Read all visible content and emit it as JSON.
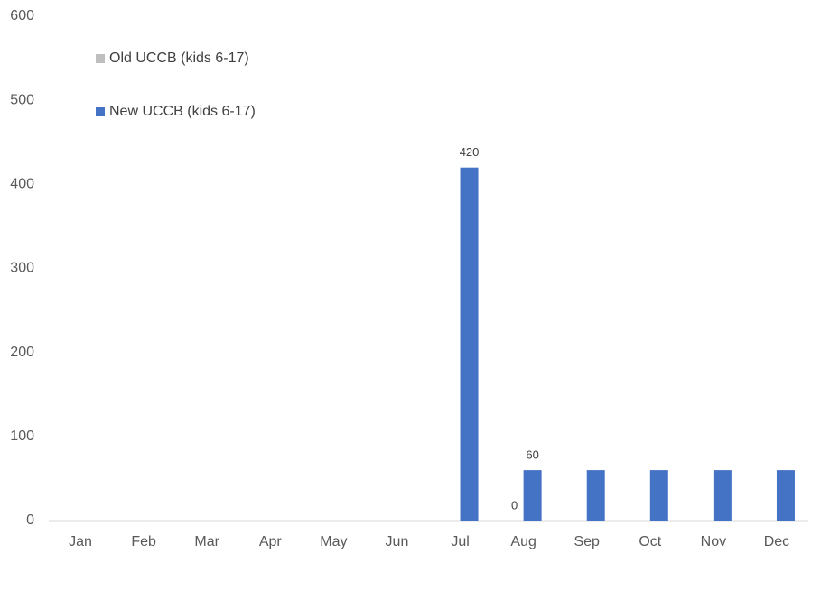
{
  "chart_data": {
    "type": "bar",
    "categories": [
      "Jan",
      "Feb",
      "Mar",
      "Apr",
      "May",
      "Jun",
      "Jul",
      "Aug",
      "Sep",
      "Oct",
      "Nov",
      "Dec"
    ],
    "series": [
      {
        "name": "Old UCCB (kids 6-17)",
        "color": "#bfbfbf",
        "values": [
          0,
          0,
          0,
          0,
          0,
          0,
          0,
          0,
          0,
          0,
          0,
          0
        ],
        "value_labels": [
          null,
          null,
          null,
          null,
          null,
          null,
          null,
          "0",
          null,
          null,
          null,
          null
        ]
      },
      {
        "name": "New UCCB (kids 6-17)",
        "color": "#4472c4",
        "values": [
          0,
          0,
          0,
          0,
          0,
          0,
          420,
          60,
          60,
          60,
          60,
          60
        ],
        "value_labels": [
          null,
          null,
          null,
          null,
          null,
          null,
          "420",
          "60",
          null,
          null,
          null,
          null
        ]
      }
    ],
    "ylim": [
      0,
      600
    ],
    "yticks": [
      0,
      100,
      200,
      300,
      400,
      500,
      600
    ],
    "grid": false,
    "legend": "top-left"
  }
}
